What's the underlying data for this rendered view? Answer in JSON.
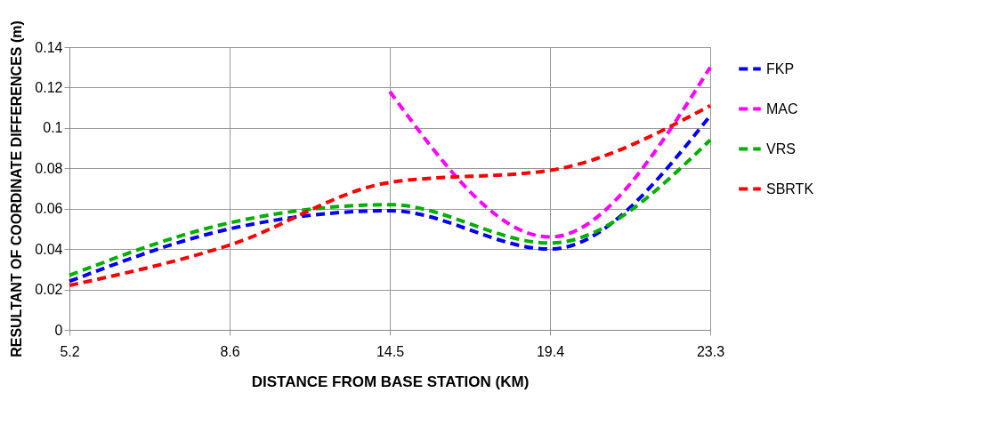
{
  "chart_data": {
    "type": "line",
    "xlabel": "DISTANCE FROM BASE STATION (KM)",
    "ylabel": "RESULTANT OF COORDINATE DIFFERENCES (m)",
    "categories": [
      "5.2",
      "8.6",
      "14.5",
      "19.4",
      "23.3"
    ],
    "series": [
      {
        "name": "FKP",
        "color": "#0000ff",
        "values": [
          0.024,
          0.05,
          0.059,
          0.04,
          0.106
        ]
      },
      {
        "name": "MAC",
        "color": "#ff00ff",
        "values": [
          null,
          null,
          0.118,
          0.046,
          0.13
        ]
      },
      {
        "name": "VRS",
        "color": "#00b000",
        "values": [
          0.027,
          0.053,
          0.062,
          0.043,
          0.094
        ]
      },
      {
        "name": "SBRTK",
        "color": "#ff0000",
        "values": [
          0.022,
          0.042,
          0.073,
          0.079,
          0.111
        ]
      }
    ],
    "ylim": [
      0,
      0.14
    ],
    "yticks": [
      0,
      0.02,
      0.04,
      0.06,
      0.08,
      0.1,
      0.12,
      0.14
    ],
    "grid": true,
    "legend": "right",
    "line_style": "dashed",
    "marker": "none"
  }
}
